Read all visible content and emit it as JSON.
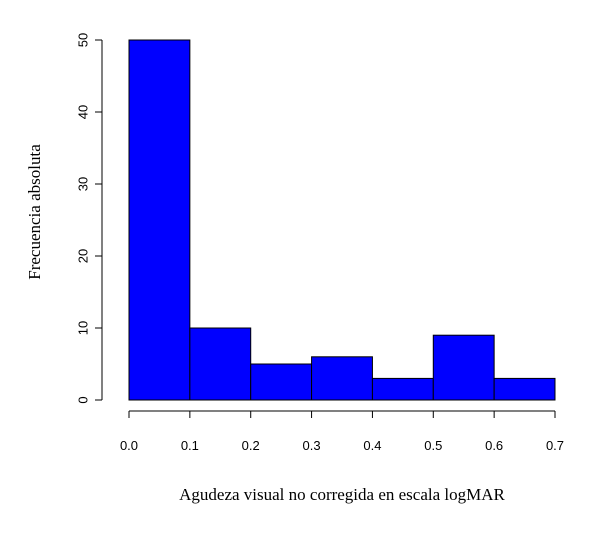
{
  "chart_data": {
    "type": "bar",
    "subtype": "histogram",
    "xlabel": "Agudeza visual no corregida en escala logMAR",
    "ylabel": "Frecuencia absoluta",
    "bins": [
      {
        "start": 0.0,
        "end": 0.1,
        "value": 50
      },
      {
        "start": 0.1,
        "end": 0.2,
        "value": 10
      },
      {
        "start": 0.2,
        "end": 0.3,
        "value": 5
      },
      {
        "start": 0.3,
        "end": 0.4,
        "value": 6
      },
      {
        "start": 0.4,
        "end": 0.5,
        "value": 3
      },
      {
        "start": 0.5,
        "end": 0.6,
        "value": 9
      },
      {
        "start": 0.6,
        "end": 0.7,
        "value": 3
      }
    ],
    "xlim": [
      0.0,
      0.7
    ],
    "ylim": [
      0,
      50
    ],
    "xticks": [
      "0.0",
      "0.1",
      "0.2",
      "0.3",
      "0.4",
      "0.5",
      "0.6",
      "0.7"
    ],
    "yticks": [
      "0",
      "10",
      "20",
      "30",
      "40",
      "50"
    ],
    "bar_color": "#0000FF",
    "grid": false,
    "legend": "none"
  }
}
